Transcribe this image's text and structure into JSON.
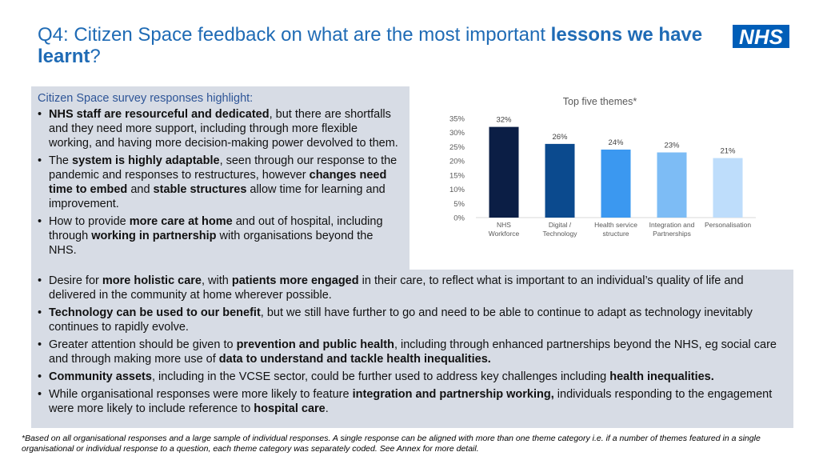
{
  "title": {
    "part1": "Q4: Citizen Space feedback on what are the most important ",
    "bold": "lessons we have learnt",
    "part2": "?"
  },
  "logo": {
    "text": "NHS"
  },
  "intro": "Citizen Space survey responses highlight:",
  "bullets_top": [
    [
      {
        "t": "NHS staff are resourceful and dedicated",
        "b": true
      },
      {
        "t": ", but there are shortfalls and they need more support, including through more flexible working, and having more decision-making power devolved to them.",
        "b": false
      }
    ],
    [
      {
        "t": "The ",
        "b": false
      },
      {
        "t": "system is highly adaptable",
        "b": true
      },
      {
        "t": ", seen through our response to the pandemic and responses to restructures, however ",
        "b": false
      },
      {
        "t": "changes need time to embed",
        "b": true
      },
      {
        "t": " and ",
        "b": false
      },
      {
        "t": "stable structures",
        "b": true
      },
      {
        "t": " allow time for learning and improvement.",
        "b": false
      }
    ],
    [
      {
        "t": "How to provide ",
        "b": false
      },
      {
        "t": "more care at home",
        "b": true
      },
      {
        "t": " and out of hospital, including through ",
        "b": false
      },
      {
        "t": "working in partnership",
        "b": true
      },
      {
        "t": " with organisations beyond the NHS.",
        "b": false
      }
    ]
  ],
  "bullets_bottom": [
    [
      {
        "t": "Desire for ",
        "b": false
      },
      {
        "t": "more holistic care",
        "b": true
      },
      {
        "t": ", with ",
        "b": false
      },
      {
        "t": "patients more engaged",
        "b": true
      },
      {
        "t": " in their care, to reflect what is important to an individual’s quality of life and delivered in the community at home wherever possible.",
        "b": false
      }
    ],
    [
      {
        "t": "Technology can be used to our benefit",
        "b": true
      },
      {
        "t": ", but we still have further to go and need to be able to continue to adapt as technology inevitably continues to rapidly evolve.",
        "b": false
      }
    ],
    [
      {
        "t": "Greater attention should be given to ",
        "b": false
      },
      {
        "t": "prevention and public health",
        "b": true
      },
      {
        "t": ", including through enhanced partnerships beyond the NHS, eg social care and through making more use of ",
        "b": false
      },
      {
        "t": "data to understand and tackle health inequalities.",
        "b": true
      }
    ],
    [
      {
        "t": "Community assets",
        "b": true
      },
      {
        "t": ", including in the VCSE sector, could be further used to address key challenges including ",
        "b": false
      },
      {
        "t": "health inequalities.",
        "b": true
      }
    ],
    [
      {
        "t": "While organisational responses were more likely to feature ",
        "b": false
      },
      {
        "t": "integration and partnership working,",
        "b": true
      },
      {
        "t": " individuals responding to the engagement were more likely to include reference to ",
        "b": false
      },
      {
        "t": "hospital care",
        "b": true
      },
      {
        "t": ".",
        "b": false
      }
    ]
  ],
  "chart_data": {
    "type": "bar",
    "title": "Top five themes*",
    "categories": [
      [
        "NHS",
        "Workforce"
      ],
      [
        "Digital /",
        "Technology"
      ],
      [
        "Health service",
        "structure"
      ],
      [
        "Integration and",
        "Partnerships"
      ],
      [
        "Personalisation"
      ]
    ],
    "values": [
      32,
      26,
      24,
      23,
      21
    ],
    "labels": [
      "32%",
      "26%",
      "24%",
      "23%",
      "21%"
    ],
    "colors": [
      "#0B1E45",
      "#0B4A8E",
      "#3B98F0",
      "#7DBCF5",
      "#BEDDFB"
    ],
    "ylim": [
      0,
      35
    ],
    "yticks": [
      0,
      5,
      10,
      15,
      20,
      25,
      30,
      35
    ],
    "ytick_suffix": "%",
    "grid": false
  },
  "footnote": "*Based on all organisational responses and a large sample of individual responses. A single response can be aligned with more than one theme category i.e. if a number of themes featured in a single organisational or individual response to a question, each theme category was separately coded. See Annex for more detail."
}
